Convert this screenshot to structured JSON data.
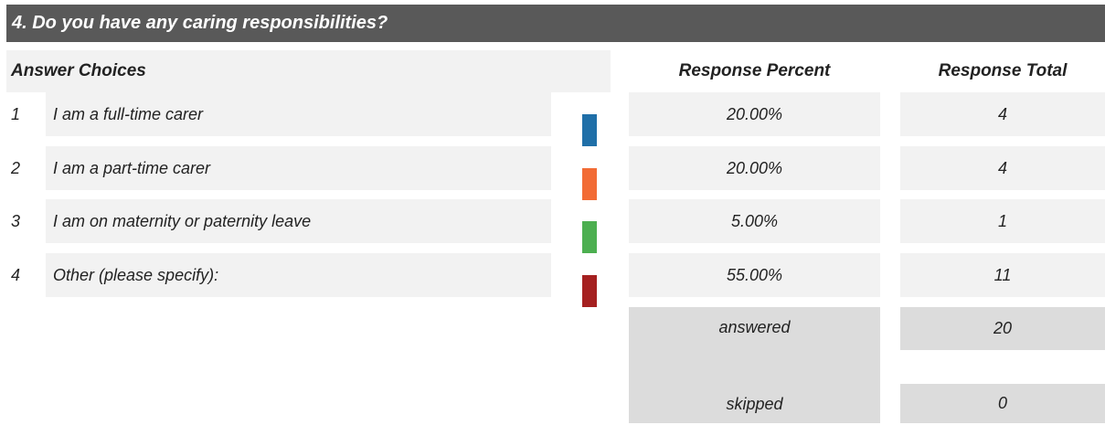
{
  "title": "4. Do you have any caring responsibilities?",
  "table": {
    "headers": [
      "Answer Choices",
      "Response Percent",
      "Response Total"
    ],
    "rows": [
      {
        "number": 1,
        "label": "I am a full-time carer",
        "percent": "20.00%",
        "total": 4,
        "color": "#1f6fa8"
      },
      {
        "number": 2,
        "label": "I am a part-time carer",
        "percent": "20.00%",
        "total": 4,
        "color": "#f26b35"
      },
      {
        "number": 3,
        "label": "I am on maternity or paternity leave",
        "percent": "5.00%",
        "total": 1,
        "color": "#4caf50"
      },
      {
        "number": 4,
        "label": "Other (please specify):",
        "percent": "55.00%",
        "total": 11,
        "color": "#a52020"
      }
    ],
    "summary": [
      {
        "label": "answered",
        "value": 20
      },
      {
        "label": "skipped",
        "value": 0
      }
    ]
  }
}
